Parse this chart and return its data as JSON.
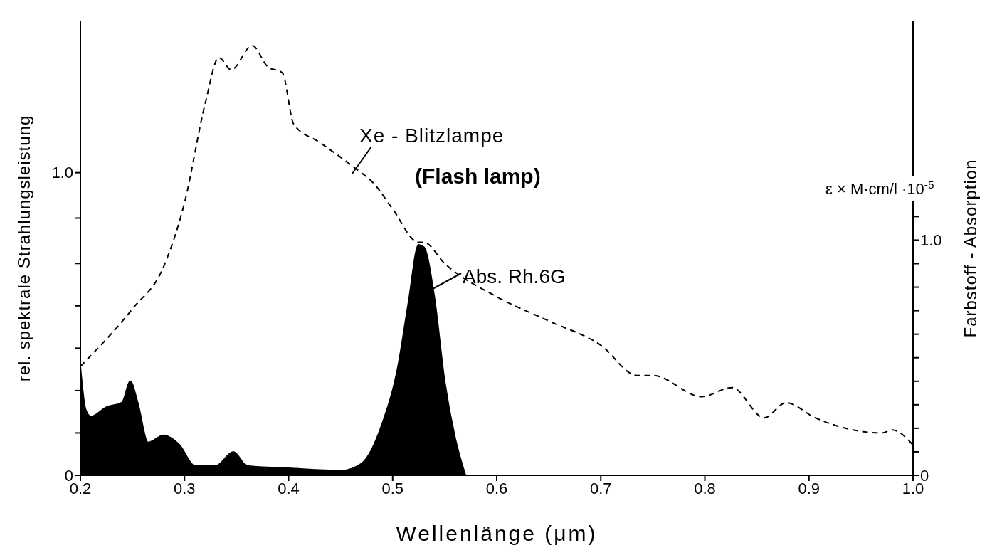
{
  "chart_data": {
    "type": "line",
    "xlabel": "Wellenlänge (μm)",
    "ylabel": "rel. spektrale Strahlungsleistung",
    "y2label": "Farbstoff - Absorption",
    "xlim": [
      0.2,
      1.0
    ],
    "xticks": [
      0.2,
      0.3,
      0.4,
      0.5,
      0.6,
      0.7,
      0.8,
      0.9,
      {
        "value": 1.0,
        "label": "1.0"
      }
    ],
    "ylim": [
      0,
      1.5
    ],
    "yticks": [
      0,
      {
        "value": 0.14,
        "label": null
      },
      {
        "value": 0.28,
        "label": null
      },
      {
        "value": 0.42,
        "label": null
      },
      {
        "value": 0.56,
        "label": null
      },
      {
        "value": 0.7,
        "label": null
      },
      {
        "value": 0.85,
        "label": null
      },
      {
        "value": 1.0,
        "label": "1.0"
      }
    ],
    "y2lim": [
      0,
      1.93
    ],
    "y2ticks": [
      0,
      {
        "value": 0.1,
        "label": null
      },
      {
        "value": 0.2,
        "label": null
      },
      {
        "value": 0.3,
        "label": null
      },
      {
        "value": 0.4,
        "label": null
      },
      {
        "value": 0.5,
        "label": null
      },
      {
        "value": 0.6,
        "label": null
      },
      {
        "value": 0.7,
        "label": null
      },
      {
        "value": 0.8,
        "label": null
      },
      {
        "value": 0.9,
        "label": null
      },
      {
        "value": 1.0,
        "label": "1.0"
      },
      {
        "value": 1.1,
        "label": null
      }
    ],
    "annotations": [
      "ε × M·cm/l ·10$^{-5}$",
      "(Flash lamp)"
    ],
    "series": [
      {
        "name": "Xe - Blitzlampe",
        "type": "line",
        "line_style": "dashed",
        "color": "#000000",
        "x": [
          0.2,
          0.25,
          0.28,
          0.3,
          0.32,
          0.333,
          0.345,
          0.365,
          0.38,
          0.394,
          0.405,
          0.43,
          0.462,
          0.483,
          0.5,
          0.525,
          0.53,
          0.55,
          0.6,
          0.65,
          0.7,
          0.735,
          0.75,
          0.797,
          0.826,
          0.857,
          0.878,
          0.906,
          0.97,
          0.98,
          1.0
        ],
        "values": [
          0.36,
          0.55,
          0.69,
          0.9,
          1.23,
          1.38,
          1.34,
          1.42,
          1.35,
          1.33,
          1.16,
          1.1,
          1.02,
          0.96,
          0.88,
          0.77,
          0.77,
          0.7,
          0.59,
          0.51,
          0.43,
          0.33,
          0.33,
          0.26,
          0.29,
          0.19,
          0.24,
          0.19,
          0.14,
          0.15,
          0.1
        ]
      },
      {
        "name": "Abs. Rh.6G",
        "type": "area",
        "axis": "y2",
        "color": "#000000",
        "x": [
          0.2,
          0.205,
          0.21,
          0.225,
          0.24,
          0.248,
          0.255,
          0.265,
          0.28,
          0.295,
          0.31,
          0.33,
          0.347,
          0.36,
          0.4,
          0.45,
          0.47,
          0.49,
          0.505,
          0.515,
          0.525,
          0.53,
          0.54,
          0.55,
          0.56,
          0.57
        ],
        "values": [
          0.46,
          0.28,
          0.25,
          0.29,
          0.31,
          0.4,
          0.31,
          0.14,
          0.17,
          0.13,
          0.04,
          0.04,
          0.1,
          0.04,
          0.03,
          0.02,
          0.05,
          0.22,
          0.46,
          0.73,
          0.98,
          0.97,
          0.76,
          0.4,
          0.16,
          0
        ]
      }
    ]
  }
}
